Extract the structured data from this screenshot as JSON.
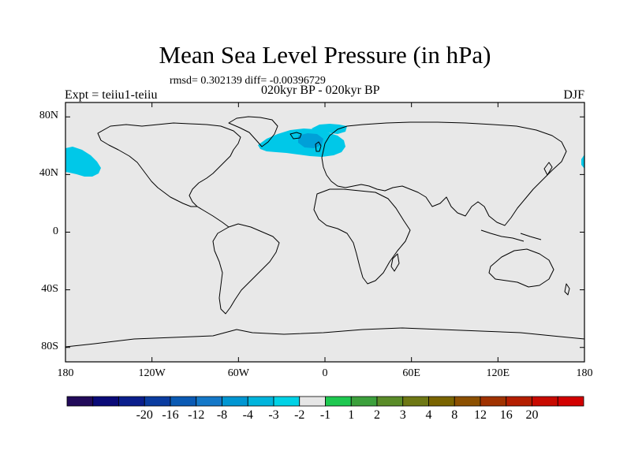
{
  "header": {
    "title": "Mean Sea Level Pressure (in hPa)",
    "stats": "rmsd= 0.302139 diff= -0.00396729",
    "subtitle": "020kyr BP - 020kyr BP",
    "left_label": "Expt = teiiu1-teiiu",
    "right_label": "DJF"
  },
  "map": {
    "projection": "cylindrical-equidistant",
    "lon_range": [
      -180,
      180
    ],
    "lat_range": [
      -90,
      90
    ],
    "background_color": "#e8e8e8",
    "coastline_color": "#000000",
    "y_ticks": [
      {
        "lat": 80,
        "label": "80N"
      },
      {
        "lat": 40,
        "label": "40N"
      },
      {
        "lat": 0,
        "label": "0"
      },
      {
        "lat": -40,
        "label": "40S"
      },
      {
        "lat": -80,
        "label": "80S"
      }
    ],
    "x_ticks": [
      {
        "lon": -180,
        "label": "180"
      },
      {
        "lon": -120,
        "label": "120W"
      },
      {
        "lon": -60,
        "label": "60W"
      },
      {
        "lon": 0,
        "label": "0"
      },
      {
        "lon": 60,
        "label": "60E"
      },
      {
        "lon": 120,
        "label": "120E"
      },
      {
        "lon": 180,
        "label": "180"
      }
    ],
    "anomalies": [
      {
        "region": "north-pacific",
        "level": "-2 to -1",
        "color": "#00c8e8"
      },
      {
        "region": "north-atlantic",
        "level": "-2 to -1",
        "color": "#00c8e8"
      },
      {
        "region": "north-atlantic-core",
        "level": "-3 to -2",
        "color": "#00a0d8"
      },
      {
        "region": "nordic-seas",
        "level": "-2 to -1",
        "color": "#00c8e8"
      }
    ]
  },
  "colorbar": {
    "colors": [
      "#220a5a",
      "#0a0a78",
      "#0a1e8c",
      "#0a3ca0",
      "#0a5ab4",
      "#1478c8",
      "#0096d2",
      "#00b4dc",
      "#00d2e6",
      "#e6e6e6",
      "#1ec850",
      "#3ca03c",
      "#5a8c28",
      "#6e7814",
      "#7a6400",
      "#8c5000",
      "#a03200",
      "#b41e00",
      "#c80a00",
      "#d20000"
    ],
    "labels": [
      "-20",
      "-16",
      "-12",
      "-8",
      "-4",
      "-3",
      "-2",
      "-1",
      "1",
      "2",
      "3",
      "4",
      "8",
      "12",
      "16",
      "20"
    ]
  }
}
